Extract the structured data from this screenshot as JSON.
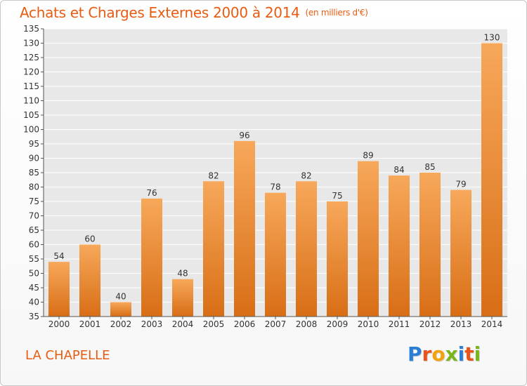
{
  "header": {
    "title": "Achats et Charges Externes 2000 à 2014",
    "unit": "(en milliers d'€)"
  },
  "footer": {
    "place": "LA CHAPELLE",
    "logo": "Proxiti"
  },
  "colors": {
    "title": "#e85c12",
    "bar_light": "#f7a85a",
    "bar_dark": "#d86e16",
    "plot_bg": "#e8e8e8"
  },
  "chart_data": {
    "type": "bar",
    "title": "Achats et Charges Externes 2000 à 2014",
    "xlabel": "",
    "ylabel": "",
    "categories": [
      "2000",
      "2001",
      "2002",
      "2003",
      "2004",
      "2005",
      "2006",
      "2007",
      "2008",
      "2009",
      "2010",
      "2011",
      "2012",
      "2013",
      "2014"
    ],
    "values": [
      54,
      60,
      40,
      76,
      48,
      82,
      96,
      78,
      82,
      75,
      89,
      84,
      85,
      79,
      130
    ],
    "ylim": [
      35,
      135
    ],
    "yticks": [
      35,
      40,
      45,
      50,
      55,
      60,
      65,
      70,
      75,
      80,
      85,
      90,
      95,
      100,
      105,
      110,
      115,
      120,
      125,
      130,
      135
    ],
    "grid": true,
    "data_labels": true
  }
}
